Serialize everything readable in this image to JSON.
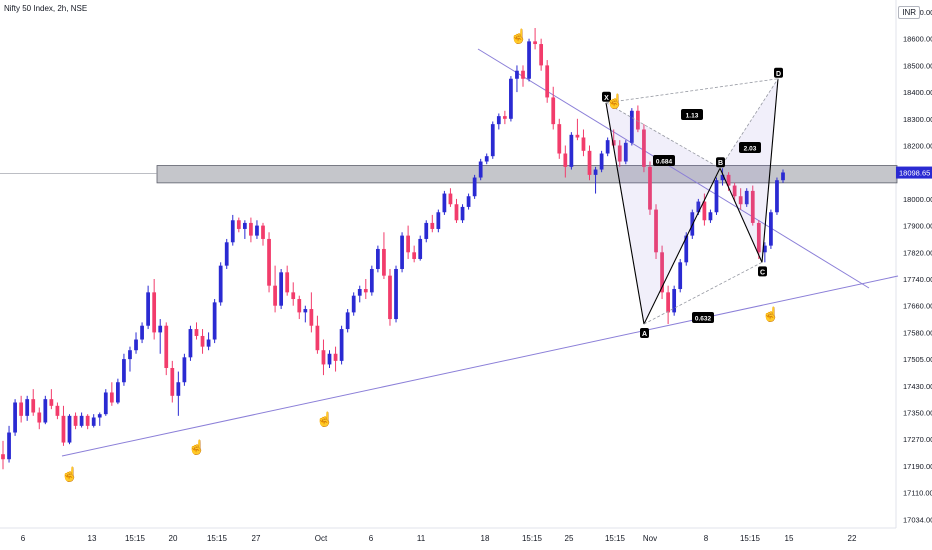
{
  "header": {
    "title": "Nifty 50 Index, 2h, NSE",
    "currency": "INR"
  },
  "chart_data": {
    "type": "candlestick",
    "symbol": "Nifty 50 Index",
    "interval": "2h",
    "exchange": "NSE",
    "y_ticks": [
      18700,
      18600,
      18500,
      18400,
      18300,
      18200,
      18100,
      18000,
      17900,
      17820,
      17740,
      17660,
      17580,
      17505,
      17430,
      17350,
      17270,
      17190,
      17110,
      17034
    ],
    "y_tick_labels": [
      "18700.00",
      "18600.00",
      "18500.00",
      "18400.00",
      "18300.00",
      "18200.00",
      "18100.00",
      "18000.00",
      "17900.00",
      "17820.00",
      "17740.00",
      "17660.00",
      "17580.00",
      "17505.00",
      "17430.00",
      "17350.00",
      "17270.00",
      "17190.00",
      "17110.00",
      "17034.00"
    ],
    "x_labels": [
      "6",
      "13",
      "15:15",
      "20",
      "15:15",
      "27",
      "Oct",
      "6",
      "11",
      "18",
      "15:15",
      "25",
      "15:15",
      "Nov",
      "8",
      "15:15",
      "15",
      "22"
    ],
    "last_price": "18098.65",
    "up_color": "#2a2ad2",
    "down_color": "#f23c6b",
    "pattern_color": "#8b7fd8",
    "support_zone": {
      "low": 18060,
      "high": 18125
    },
    "harmonic_pattern": {
      "points": [
        {
          "label": "X",
          "price": 18360
        },
        {
          "label": "A",
          "price": 17605
        },
        {
          "label": "B",
          "price": 18115
        },
        {
          "label": "C",
          "price": 17790
        },
        {
          "label": "D",
          "price": 18450
        }
      ],
      "ratios": [
        "0.684",
        "1.13",
        "2.03",
        "0.632"
      ]
    },
    "trendlines": [
      "descending resistance from 18640 through point B",
      "ascending support from 17250 toward 17820"
    ],
    "candles": [
      [
        17225,
        17265,
        17180,
        17210
      ],
      [
        17210,
        17310,
        17200,
        17290
      ],
      [
        17290,
        17390,
        17280,
        17380
      ],
      [
        17380,
        17400,
        17320,
        17340
      ],
      [
        17340,
        17400,
        17325,
        17390
      ],
      [
        17390,
        17420,
        17340,
        17350
      ],
      [
        17350,
        17365,
        17300,
        17320
      ],
      [
        17320,
        17400,
        17315,
        17390
      ],
      [
        17390,
        17420,
        17360,
        17370
      ],
      [
        17370,
        17380,
        17330,
        17340
      ],
      [
        17340,
        17370,
        17250,
        17260
      ],
      [
        17260,
        17345,
        17255,
        17340
      ],
      [
        17340,
        17350,
        17300,
        17310
      ],
      [
        17310,
        17350,
        17305,
        17340
      ],
      [
        17340,
        17345,
        17300,
        17310
      ],
      [
        17310,
        17345,
        17305,
        17335
      ],
      [
        17335,
        17350,
        17310,
        17345
      ],
      [
        17345,
        17420,
        17340,
        17410
      ],
      [
        17410,
        17440,
        17370,
        17380
      ],
      [
        17380,
        17450,
        17375,
        17440
      ],
      [
        17440,
        17520,
        17430,
        17505
      ],
      [
        17505,
        17540,
        17470,
        17530
      ],
      [
        17530,
        17580,
        17520,
        17560
      ],
      [
        17560,
        17610,
        17550,
        17600
      ],
      [
        17600,
        17720,
        17590,
        17700
      ],
      [
        17700,
        17740,
        17560,
        17580
      ],
      [
        17580,
        17620,
        17520,
        17600
      ],
      [
        17600,
        17610,
        17460,
        17480
      ],
      [
        17480,
        17500,
        17380,
        17400
      ],
      [
        17400,
        17470,
        17340,
        17440
      ],
      [
        17440,
        17520,
        17430,
        17510
      ],
      [
        17510,
        17600,
        17500,
        17590
      ],
      [
        17590,
        17610,
        17560,
        17570
      ],
      [
        17570,
        17590,
        17520,
        17540
      ],
      [
        17540,
        17580,
        17530,
        17560
      ],
      [
        17560,
        17680,
        17550,
        17670
      ],
      [
        17670,
        17790,
        17660,
        17780
      ],
      [
        17780,
        17860,
        17770,
        17850
      ],
      [
        17850,
        17940,
        17840,
        17920
      ],
      [
        17920,
        17930,
        17880,
        17890
      ],
      [
        17890,
        17920,
        17860,
        17910
      ],
      [
        17910,
        17930,
        17850,
        17870
      ],
      [
        17870,
        17920,
        17860,
        17900
      ],
      [
        17900,
        17910,
        17840,
        17860
      ],
      [
        17860,
        17880,
        17700,
        17720
      ],
      [
        17720,
        17780,
        17640,
        17660
      ],
      [
        17660,
        17770,
        17650,
        17760
      ],
      [
        17760,
        17780,
        17690,
        17700
      ],
      [
        17700,
        17730,
        17660,
        17680
      ],
      [
        17680,
        17690,
        17620,
        17640
      ],
      [
        17640,
        17660,
        17610,
        17650
      ],
      [
        17650,
        17700,
        17580,
        17600
      ],
      [
        17600,
        17630,
        17520,
        17530
      ],
      [
        17530,
        17560,
        17460,
        17490
      ],
      [
        17490,
        17530,
        17480,
        17520
      ],
      [
        17520,
        17540,
        17470,
        17500
      ],
      [
        17500,
        17600,
        17490,
        17590
      ],
      [
        17590,
        17650,
        17580,
        17640
      ],
      [
        17640,
        17700,
        17630,
        17690
      ],
      [
        17690,
        17720,
        17670,
        17710
      ],
      [
        17710,
        17740,
        17680,
        17700
      ],
      [
        17700,
        17780,
        17690,
        17770
      ],
      [
        17770,
        17840,
        17760,
        17830
      ],
      [
        17830,
        17880,
        17740,
        17750
      ],
      [
        17750,
        17770,
        17600,
        17620
      ],
      [
        17620,
        17780,
        17610,
        17770
      ],
      [
        17770,
        17880,
        17760,
        17870
      ],
      [
        17870,
        17900,
        17800,
        17820
      ],
      [
        17820,
        17840,
        17790,
        17800
      ],
      [
        17800,
        17870,
        17795,
        17860
      ],
      [
        17860,
        17920,
        17850,
        17910
      ],
      [
        17910,
        17940,
        17880,
        17890
      ],
      [
        17890,
        17960,
        17880,
        17950
      ],
      [
        17950,
        18030,
        17940,
        18020
      ],
      [
        18020,
        18040,
        17970,
        17980
      ],
      [
        17980,
        18000,
        17910,
        17920
      ],
      [
        17920,
        17980,
        17910,
        17970
      ],
      [
        17970,
        18020,
        17960,
        18010
      ],
      [
        18010,
        18090,
        18000,
        18080
      ],
      [
        18080,
        18150,
        18070,
        18140
      ],
      [
        18140,
        18170,
        18130,
        18160
      ],
      [
        18160,
        18290,
        18150,
        18280
      ],
      [
        18280,
        18320,
        18260,
        18310
      ],
      [
        18310,
        18330,
        18280,
        18300
      ],
      [
        18300,
        18460,
        18290,
        18450
      ],
      [
        18450,
        18500,
        18400,
        18480
      ],
      [
        18480,
        18500,
        18420,
        18450
      ],
      [
        18450,
        18600,
        18440,
        18590
      ],
      [
        18590,
        18640,
        18560,
        18580
      ],
      [
        18580,
        18600,
        18480,
        18500
      ],
      [
        18500,
        18520,
        18360,
        18380
      ],
      [
        18380,
        18420,
        18260,
        18280
      ],
      [
        18280,
        18300,
        18150,
        18170
      ],
      [
        18170,
        18200,
        18080,
        18120
      ],
      [
        18120,
        18250,
        18110,
        18240
      ],
      [
        18240,
        18300,
        18220,
        18230
      ],
      [
        18230,
        18260,
        18160,
        18180
      ],
      [
        18180,
        18200,
        18070,
        18090
      ],
      [
        18090,
        18120,
        18020,
        18110
      ],
      [
        18110,
        18180,
        18100,
        18170
      ],
      [
        18170,
        18230,
        18160,
        18220
      ],
      [
        18220,
        18260,
        18190,
        18200
      ],
      [
        18200,
        18220,
        18120,
        18140
      ],
      [
        18140,
        18220,
        18130,
        18210
      ],
      [
        18210,
        18340,
        18200,
        18330
      ],
      [
        18330,
        18350,
        18250,
        18260
      ],
      [
        18260,
        18280,
        18100,
        18120
      ],
      [
        18120,
        18140,
        17940,
        17960
      ],
      [
        17960,
        17980,
        17800,
        17820
      ],
      [
        17820,
        17840,
        17680,
        17700
      ],
      [
        17700,
        17720,
        17605,
        17640
      ],
      [
        17640,
        17720,
        17630,
        17710
      ],
      [
        17710,
        17800,
        17700,
        17790
      ],
      [
        17790,
        17880,
        17780,
        17870
      ],
      [
        17870,
        17960,
        17860,
        17950
      ],
      [
        17950,
        18000,
        17940,
        17990
      ],
      [
        17990,
        18020,
        17900,
        17920
      ],
      [
        17920,
        17960,
        17910,
        17950
      ],
      [
        17950,
        18080,
        17940,
        18070
      ],
      [
        18070,
        18115,
        18050,
        18090
      ],
      [
        18090,
        18100,
        18030,
        18050
      ],
      [
        18050,
        18060,
        17990,
        18010
      ],
      [
        18010,
        18040,
        17960,
        17980
      ],
      [
        17980,
        18040,
        17970,
        18030
      ],
      [
        18030,
        18050,
        17900,
        17910
      ],
      [
        17910,
        17920,
        17800,
        17820
      ],
      [
        17820,
        17850,
        17790,
        17840
      ],
      [
        17840,
        17960,
        17830,
        17950
      ],
      [
        17950,
        18080,
        17940,
        18070
      ],
      [
        18070,
        18110,
        18060,
        18099
      ]
    ]
  }
}
